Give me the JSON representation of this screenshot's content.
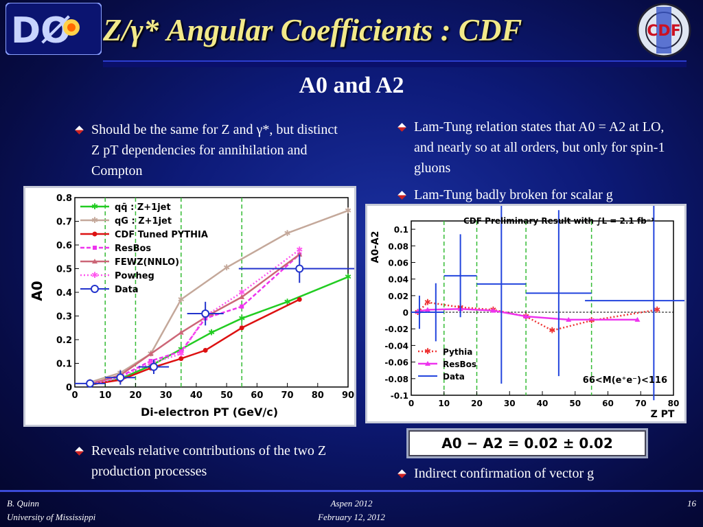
{
  "header": {
    "title": "Z/γ* Angular Coefficients : CDF",
    "subtitle": "A0 and A2"
  },
  "left_bullets": [
    "Should be the same for Z and γ*, but distinct Z pT dependencies for annihilation and Compton",
    "Reveals relative contributions of the two Z production processes"
  ],
  "right_bullets": [
    "Lam-Tung relation states that A0 = A2 at LO, and nearly so at all orders, but only for spin-1 gluons",
    "Lam-Tung badly broken for scalar g",
    "Indirect confirmation of vector g"
  ],
  "equation": "A0 − A2 = 0.02 ± 0.02",
  "footer": {
    "author": "B. Quinn",
    "institution": "University of Mississippi",
    "event": "Aspen 2012",
    "date": "February 12, 2012",
    "page": "16"
  },
  "logos": {
    "left": "DØ",
    "right": "CDF"
  },
  "colors": {
    "title": "#f2e98a",
    "accent_red": "#cc2222"
  },
  "chart_data": [
    {
      "type": "line",
      "xlabel": "Di-electron PT (GeV/c)",
      "ylabel": "A0",
      "xlim": [
        0,
        90
      ],
      "ylim": [
        0,
        0.8
      ],
      "xticks": [
        "0",
        "10",
        "20",
        "30",
        "40",
        "50",
        "60",
        "70",
        "80",
        "90"
      ],
      "yticks": [
        "0",
        "0.1",
        "0.2",
        "0.3",
        "0.4",
        "0.5",
        "0.6",
        "0.7",
        "0.8"
      ],
      "vlines": [
        10,
        20,
        35,
        55
      ],
      "series": [
        {
          "name": "qq̄ : Z+1jet",
          "color": "#22cc22",
          "style": "solid",
          "marker": "star",
          "x": [
            5,
            15,
            25,
            35,
            45,
            55,
            70,
            90
          ],
          "y": [
            0.008,
            0.035,
            0.09,
            0.16,
            0.23,
            0.29,
            0.36,
            0.465
          ]
        },
        {
          "name": "qG : Z+1jet",
          "color": "#c4a89a",
          "style": "solid",
          "marker": "star",
          "x": [
            5,
            15,
            25,
            35,
            50,
            70,
            90
          ],
          "y": [
            0.02,
            0.06,
            0.14,
            0.37,
            0.505,
            0.65,
            0.745
          ]
        },
        {
          "name": "CDF Tuned PYTHIA",
          "color": "#dd1111",
          "style": "solid",
          "marker": "dot",
          "x": [
            5,
            15,
            25,
            35,
            43,
            55,
            74
          ],
          "y": [
            0.01,
            0.03,
            0.08,
            0.12,
            0.155,
            0.25,
            0.37
          ]
        },
        {
          "name": "ResBos",
          "color": "#ee33ee",
          "style": "dashed",
          "marker": "square",
          "x": [
            5,
            15,
            25,
            35,
            43,
            55,
            74
          ],
          "y": [
            0.015,
            0.045,
            0.11,
            0.15,
            0.29,
            0.34,
            0.56
          ]
        },
        {
          "name": "FEWZ(NNLO)",
          "color": "#cc6677",
          "style": "solid",
          "marker": "triangle",
          "x": [
            5,
            15,
            25,
            35,
            45,
            55,
            74
          ],
          "y": [
            0.012,
            0.05,
            0.14,
            0.23,
            0.31,
            0.38,
            0.56
          ]
        },
        {
          "name": "Powheg",
          "color": "#ff55ee",
          "style": "dotted",
          "marker": "star",
          "x": [
            5,
            15,
            25,
            35,
            43,
            55,
            74
          ],
          "y": [
            0.01,
            0.04,
            0.1,
            0.14,
            0.3,
            0.4,
            0.58
          ]
        },
        {
          "name": "Data",
          "color": "#2233cc",
          "style": "points",
          "marker": "circle",
          "x": [
            5,
            15,
            26,
            43,
            74
          ],
          "y": [
            0.015,
            0.04,
            0.085,
            0.31,
            0.5
          ],
          "xerr": [
            5,
            5,
            5,
            6,
            20
          ],
          "yerr": [
            0.015,
            0.03,
            0.03,
            0.05,
            0.06
          ]
        }
      ]
    },
    {
      "type": "scatter",
      "title": "CDF Preliminary Result with ∫L = 2.1 fb⁻¹",
      "annotation": "66<M(e⁺e⁻)<116",
      "xlabel": "Z PT",
      "ylabel": "A0-A2",
      "xlim": [
        0,
        80
      ],
      "ylim": [
        -0.1,
        0.11
      ],
      "xticks": [
        "0",
        "10",
        "20",
        "30",
        "40",
        "50",
        "60",
        "70",
        "80"
      ],
      "yticks": [
        "-0.1",
        "-0.08",
        "-0.06",
        "-0.04",
        "-0.02",
        "0",
        "0.02",
        "0.04",
        "0.06",
        "0.08",
        "0.1"
      ],
      "vlines": [
        10,
        20,
        35,
        55
      ],
      "series": [
        {
          "name": "Pythia",
          "color": "#ee3333",
          "style": "dotted",
          "marker": "star",
          "x": [
            2,
            5,
            15,
            25,
            35,
            43,
            55,
            75
          ],
          "y": [
            0,
            0.012,
            0.006,
            0.003,
            -0.005,
            -0.022,
            -0.01,
            0.003
          ]
        },
        {
          "name": "ResBos",
          "color": "#ee33ee",
          "style": "solid",
          "marker": "triangle",
          "x": [
            2,
            5,
            15,
            25,
            35,
            48,
            69
          ],
          "y": [
            0.001,
            0.003,
            0.004,
            0.002,
            -0.005,
            -0.009,
            -0.009
          ]
        },
        {
          "name": "Data",
          "color": "#2244dd",
          "style": "points",
          "marker": "cross",
          "x": [
            2.5,
            7.5,
            15,
            27.5,
            45,
            74
          ],
          "y": [
            0,
            0.0,
            0.044,
            0.034,
            0.023,
            0.014
          ],
          "xerr": [
            2.5,
            2.5,
            5,
            7.5,
            10,
            21
          ],
          "yerr": [
            0.02,
            0.035,
            0.05,
            0.12,
            0.1,
            0.12
          ]
        }
      ]
    }
  ]
}
